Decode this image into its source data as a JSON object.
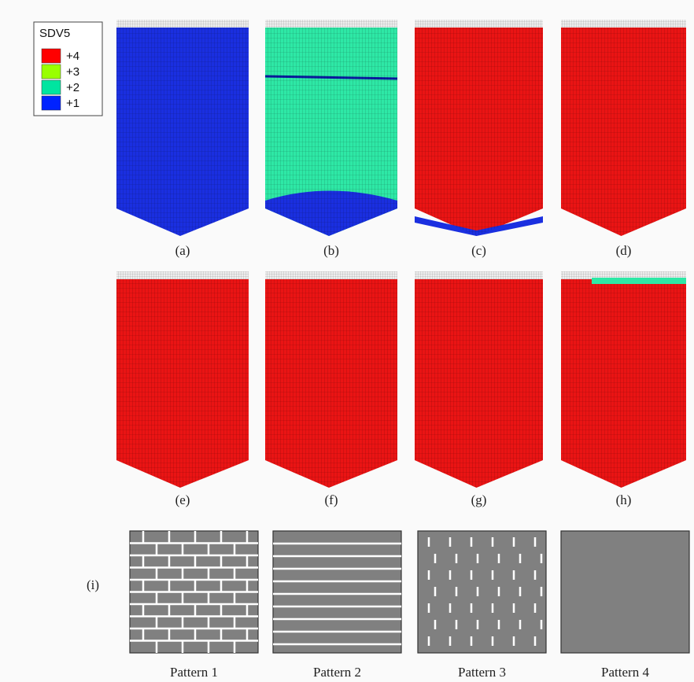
{
  "legend": {
    "title": "SDV5",
    "entries": [
      {
        "label": "+4",
        "color": "#ff0000"
      },
      {
        "label": "+3",
        "color": "#99ff00"
      },
      {
        "label": "+2",
        "color": "#00e5a0"
      },
      {
        "label": "+1",
        "color": "#0022ff"
      }
    ]
  },
  "panels": [
    "(a)",
    "(b)",
    "(c)",
    "(d)",
    "(e)",
    "(f)",
    "(g)",
    "(h)"
  ],
  "patterns_label": "(i)",
  "patterns": [
    "Pattern 1",
    "Pattern 2",
    "Pattern 3",
    "Pattern 4"
  ]
}
